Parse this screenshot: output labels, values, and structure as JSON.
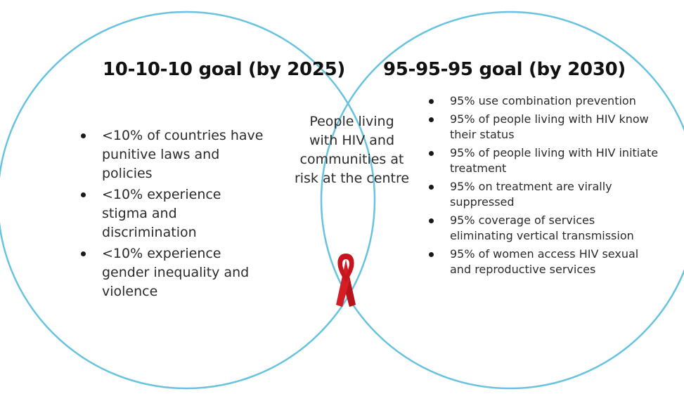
{
  "left": {
    "title": "10-10-10 goal (by 2025)",
    "items": [
      "<10% of countries have punitive laws and policies",
      "<10% experience stigma and discrimination",
      "<10% experience gender inequality and violence"
    ]
  },
  "right": {
    "title": "95-95-95 goal (by 2030)",
    "items": [
      "95% use combination prevention",
      "95% of people living with HIV know their status",
      "95% of people living with HIV initiate treatment",
      "95% on treatment are virally suppressed",
      "95% coverage of services eliminating vertical transmission",
      "95% of women access HIV sexual and reproductive services"
    ]
  },
  "center": {
    "text": "People living with HIV and communities at risk at the centre",
    "icon": "red-ribbon-icon"
  },
  "colors": {
    "circle_stroke": "#67c3df",
    "ribbon": "#c8151d",
    "text": "#2b2b2b"
  }
}
